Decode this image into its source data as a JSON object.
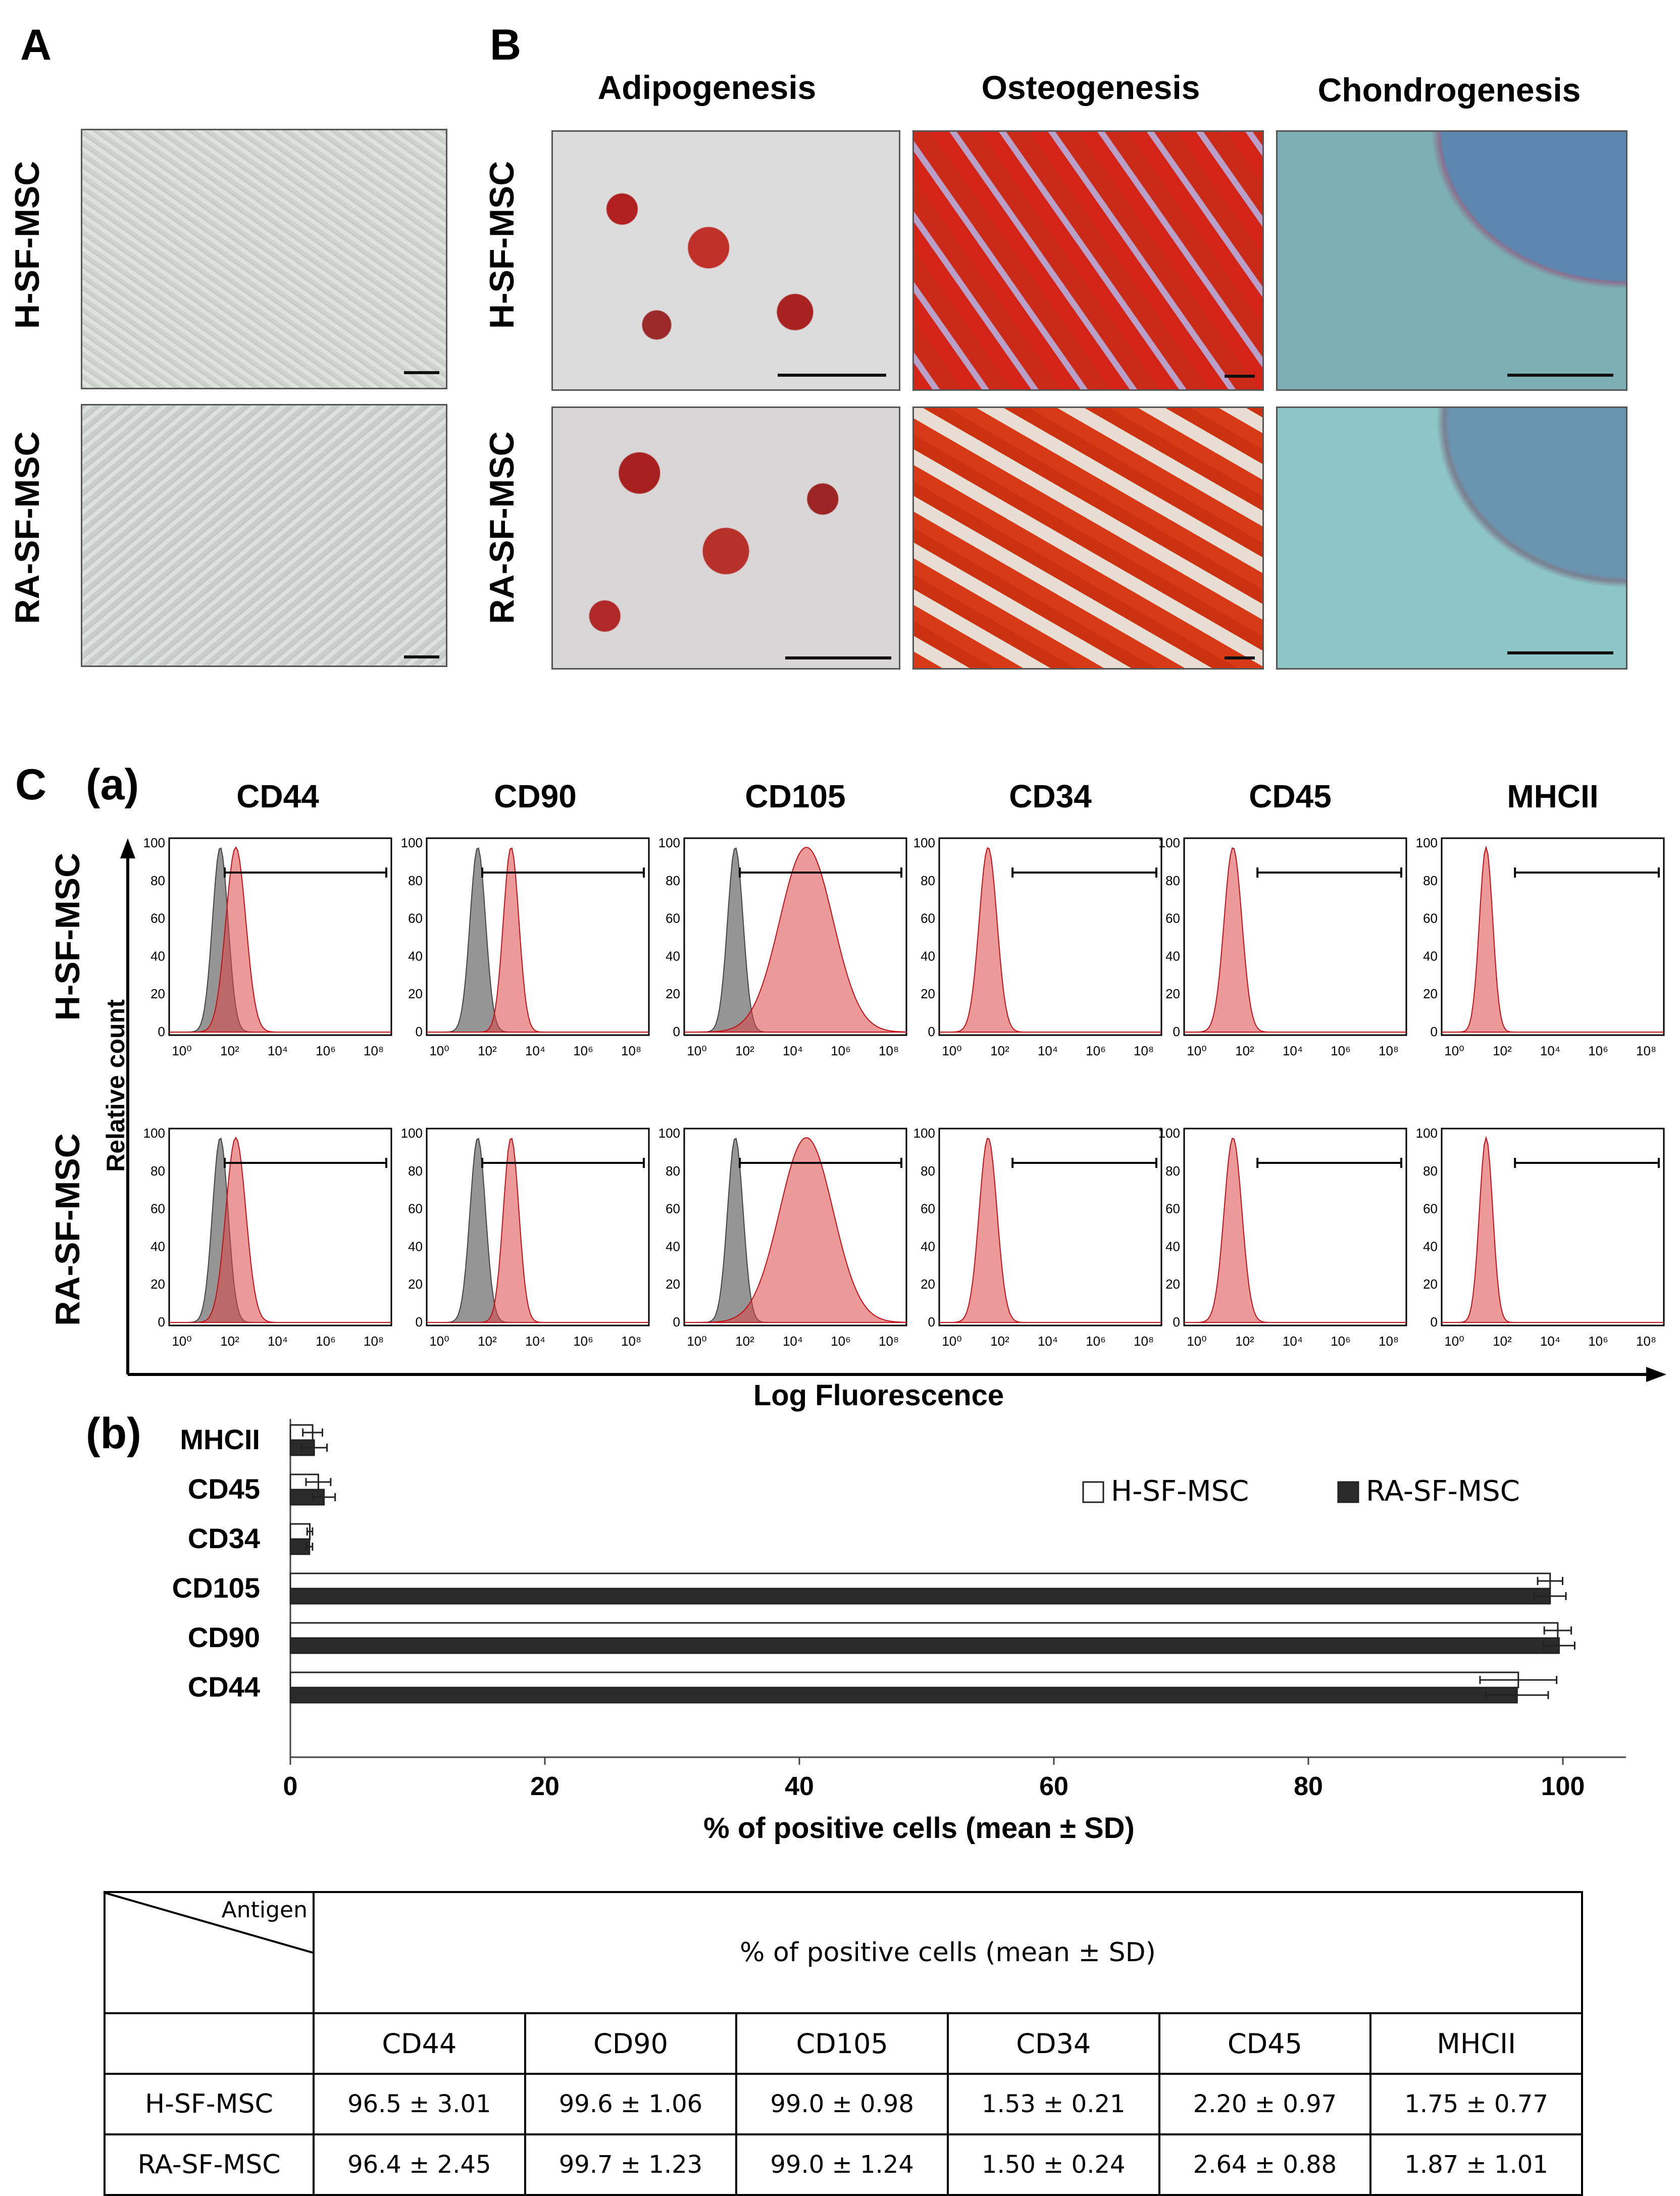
{
  "panels": {
    "A": "A",
    "B": "B",
    "C": "C",
    "Ca": "(a)",
    "Cb": "(b)"
  },
  "row_labels": {
    "h": "H-SF-MSC",
    "ra": "RA-SF-MSC"
  },
  "panel_b_titles": [
    "Adipogenesis",
    "Osteogenesis",
    "Chondrogenesis"
  ],
  "flow": {
    "markers": [
      "CD44",
      "CD90",
      "CD105",
      "CD34",
      "CD45",
      "MHCII"
    ],
    "y_label": "Relative count",
    "x_label": "Log Fluorescence",
    "y_ticks": [
      "100",
      "80",
      "60",
      "40",
      "20",
      "0"
    ],
    "x_ticks": [
      "10⁰",
      "10²",
      "10⁴",
      "10⁶",
      "10⁸"
    ]
  },
  "chart_data": {
    "type": "bar",
    "orientation": "horizontal",
    "categories": [
      "MHCII",
      "CD45",
      "CD34",
      "CD105",
      "CD90",
      "CD44"
    ],
    "series": [
      {
        "name": "H-SF-MSC",
        "color": "#ffffff",
        "values": [
          1.75,
          2.2,
          1.53,
          99.0,
          99.6,
          96.5
        ],
        "errors": [
          0.77,
          0.97,
          0.21,
          0.98,
          1.06,
          3.01
        ]
      },
      {
        "name": "RA-SF-MSC",
        "color": "#2b2b2b",
        "values": [
          1.87,
          2.64,
          1.5,
          99.0,
          99.7,
          96.4
        ],
        "errors": [
          1.01,
          0.88,
          0.24,
          1.24,
          1.23,
          2.45
        ]
      }
    ],
    "xlabel": "% of positive cells (mean ± SD)",
    "xlim": [
      0,
      105
    ],
    "x_ticks": [
      0,
      20,
      40,
      60,
      80,
      100
    ],
    "legend": "top-right"
  },
  "table": {
    "corner": "Antigen",
    "header": "% of positive cells (mean ± SD)",
    "columns": [
      "CD44",
      "CD90",
      "CD105",
      "CD34",
      "CD45",
      "MHCII"
    ],
    "rows": [
      {
        "label": "H-SF-MSC",
        "cells": [
          "96.5 ± 3.01",
          "99.6 ± 1.06",
          "99.0 ± 0.98",
          "1.53 ± 0.21",
          "2.20 ± 0.97",
          "1.75 ± 0.77"
        ]
      },
      {
        "label": "RA-SF-MSC",
        "cells": [
          "96.4 ± 2.45",
          "99.7 ± 1.23",
          "99.0 ± 1.24",
          "1.50 ± 0.24",
          "2.64 ± 0.88",
          "1.87 ± 1.01"
        ]
      }
    ]
  }
}
